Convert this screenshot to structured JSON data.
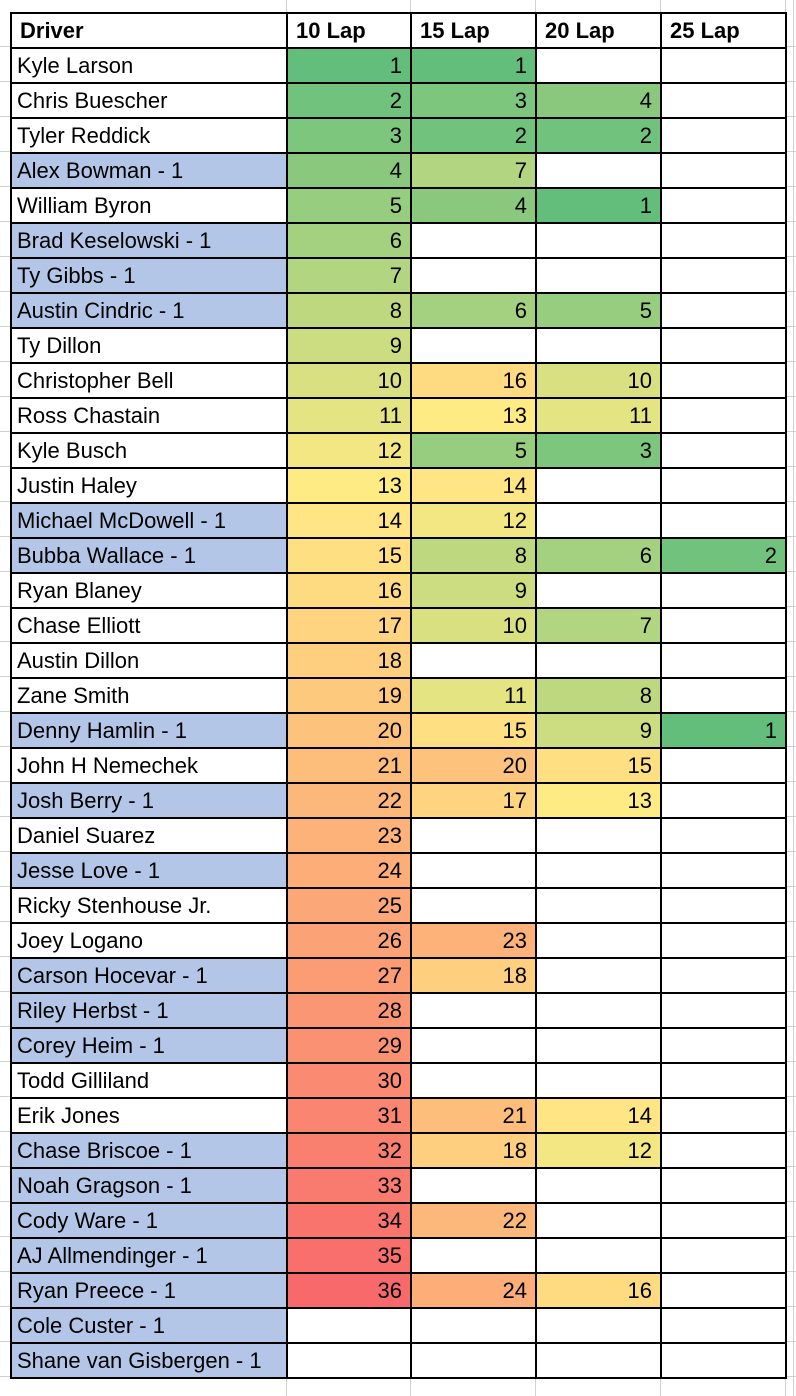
{
  "table": {
    "columns": [
      "Driver",
      "10 Lap",
      "15 Lap",
      "20 Lap",
      "25 Lap"
    ],
    "rows": [
      {
        "driver": "Kyle Larson",
        "highlighted": false,
        "values": [
          1,
          1,
          null,
          null
        ]
      },
      {
        "driver": "Chris Buescher",
        "highlighted": false,
        "values": [
          2,
          3,
          4,
          null
        ]
      },
      {
        "driver": "Tyler Reddick",
        "highlighted": false,
        "values": [
          3,
          2,
          2,
          null
        ]
      },
      {
        "driver": "Alex Bowman - 1",
        "highlighted": true,
        "values": [
          4,
          7,
          null,
          null
        ]
      },
      {
        "driver": "William Byron",
        "highlighted": false,
        "values": [
          5,
          4,
          1,
          null
        ]
      },
      {
        "driver": "Brad Keselowski - 1",
        "highlighted": true,
        "values": [
          6,
          null,
          null,
          null
        ]
      },
      {
        "driver": "Ty Gibbs - 1",
        "highlighted": true,
        "values": [
          7,
          null,
          null,
          null
        ]
      },
      {
        "driver": "Austin Cindric - 1",
        "highlighted": true,
        "values": [
          8,
          6,
          5,
          null
        ]
      },
      {
        "driver": "Ty Dillon",
        "highlighted": false,
        "values": [
          9,
          null,
          null,
          null
        ]
      },
      {
        "driver": "Christopher Bell",
        "highlighted": false,
        "values": [
          10,
          16,
          10,
          null
        ]
      },
      {
        "driver": "Ross Chastain",
        "highlighted": false,
        "values": [
          11,
          13,
          11,
          null
        ]
      },
      {
        "driver": "Kyle Busch",
        "highlighted": false,
        "values": [
          12,
          5,
          3,
          null
        ]
      },
      {
        "driver": "Justin Haley",
        "highlighted": false,
        "values": [
          13,
          14,
          null,
          null
        ]
      },
      {
        "driver": "Michael McDowell - 1",
        "highlighted": true,
        "values": [
          14,
          12,
          null,
          null
        ]
      },
      {
        "driver": "Bubba Wallace - 1",
        "highlighted": true,
        "values": [
          15,
          8,
          6,
          2
        ]
      },
      {
        "driver": "Ryan Blaney",
        "highlighted": false,
        "values": [
          16,
          9,
          null,
          null
        ]
      },
      {
        "driver": "Chase Elliott",
        "highlighted": false,
        "values": [
          17,
          10,
          7,
          null
        ]
      },
      {
        "driver": "Austin Dillon",
        "highlighted": false,
        "values": [
          18,
          null,
          null,
          null
        ]
      },
      {
        "driver": "Zane Smith",
        "highlighted": false,
        "values": [
          19,
          11,
          8,
          null
        ]
      },
      {
        "driver": "Denny Hamlin - 1",
        "highlighted": true,
        "values": [
          20,
          15,
          9,
          1
        ]
      },
      {
        "driver": "John H Nemechek",
        "highlighted": false,
        "values": [
          21,
          20,
          15,
          null
        ]
      },
      {
        "driver": "Josh Berry - 1",
        "highlighted": true,
        "values": [
          22,
          17,
          13,
          null
        ]
      },
      {
        "driver": "Daniel Suarez",
        "highlighted": false,
        "values": [
          23,
          null,
          null,
          null
        ]
      },
      {
        "driver": "Jesse Love - 1",
        "highlighted": true,
        "values": [
          24,
          null,
          null,
          null
        ]
      },
      {
        "driver": "Ricky Stenhouse Jr.",
        "highlighted": false,
        "values": [
          25,
          null,
          null,
          null
        ]
      },
      {
        "driver": "Joey Logano",
        "highlighted": false,
        "values": [
          26,
          23,
          null,
          null
        ]
      },
      {
        "driver": "Carson Hocevar - 1",
        "highlighted": true,
        "values": [
          27,
          18,
          null,
          null
        ]
      },
      {
        "driver": "Riley Herbst - 1",
        "highlighted": true,
        "values": [
          28,
          null,
          null,
          null
        ]
      },
      {
        "driver": "Corey Heim - 1",
        "highlighted": true,
        "values": [
          29,
          null,
          null,
          null
        ]
      },
      {
        "driver": "Todd Gilliland",
        "highlighted": false,
        "values": [
          30,
          null,
          null,
          null
        ]
      },
      {
        "driver": "Erik Jones",
        "highlighted": false,
        "values": [
          31,
          21,
          14,
          null
        ]
      },
      {
        "driver": "Chase Briscoe - 1",
        "highlighted": true,
        "values": [
          32,
          18,
          12,
          null
        ]
      },
      {
        "driver": "Noah Gragson - 1",
        "highlighted": true,
        "values": [
          33,
          null,
          null,
          null
        ]
      },
      {
        "driver": "Cody Ware - 1",
        "highlighted": true,
        "values": [
          34,
          22,
          null,
          null
        ]
      },
      {
        "driver": "AJ Allmendinger - 1",
        "highlighted": true,
        "values": [
          35,
          null,
          null,
          null
        ]
      },
      {
        "driver": "Ryan Preece - 1",
        "highlighted": true,
        "values": [
          36,
          24,
          16,
          null
        ]
      },
      {
        "driver": "Cole Custer - 1",
        "highlighted": true,
        "values": [
          null,
          null,
          null,
          null
        ]
      },
      {
        "driver": "Shane van Gisbergen - 1",
        "highlighted": true,
        "values": [
          null,
          null,
          null,
          null
        ]
      }
    ]
  },
  "color_scale": {
    "min": 1,
    "mid": 13,
    "max": 36,
    "min_color": "#63BE7B",
    "mid_color": "#FFEB84",
    "max_color": "#F8696B"
  },
  "colors": {
    "highlight_blue": "#B4C6E7",
    "gridline_gray": "#D0D0D0",
    "cell_border": "#000000",
    "text": "#000000"
  }
}
